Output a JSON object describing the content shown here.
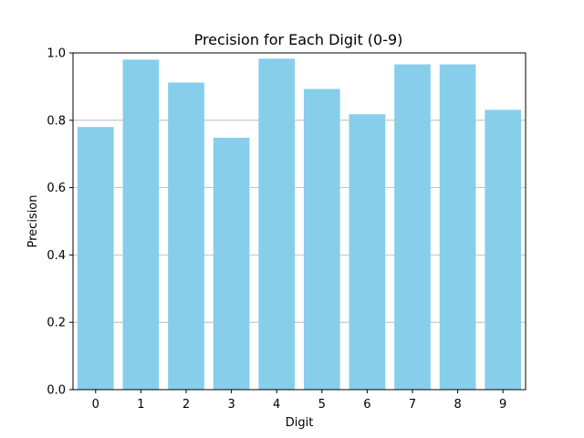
{
  "chart_data": {
    "type": "bar",
    "title": "Precision for Each Digit (0-9)",
    "xlabel": "Digit",
    "ylabel": "Precision",
    "categories": [
      "0",
      "1",
      "2",
      "3",
      "4",
      "5",
      "6",
      "7",
      "8",
      "9"
    ],
    "values": [
      0.78,
      0.98,
      0.912,
      0.748,
      0.983,
      0.893,
      0.818,
      0.966,
      0.966,
      0.831
    ],
    "ylim": [
      0,
      1.0
    ],
    "yticks": [
      "0.0",
      "0.2",
      "0.4",
      "0.6",
      "0.8",
      "1.0"
    ],
    "bar_color": "#87ceeb",
    "grid": "y-axis only"
  }
}
